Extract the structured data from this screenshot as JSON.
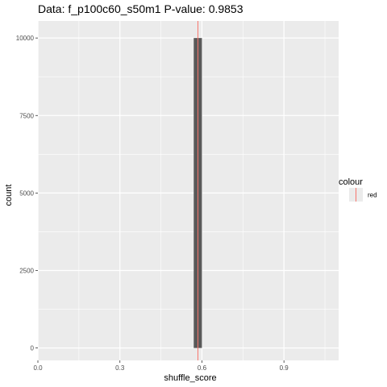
{
  "chart_data": {
    "type": "bar",
    "title": "Data: f_p100c60_s50m1      P-value: 0.9853",
    "xlabel": "shuffle_score",
    "ylabel": "count",
    "xlim": [
      0,
      1.1
    ],
    "ylim": [
      -400,
      10550
    ],
    "x_ticks": [
      0,
      0.3,
      0.6,
      0.9
    ],
    "x_tick_labels": [
      "0.0",
      "0.3",
      "0.6",
      "0.9"
    ],
    "y_ticks": [
      0,
      2500,
      5000,
      7500,
      10000
    ],
    "y_tick_labels": [
      "0",
      "2500",
      "5000",
      "7500",
      "10000"
    ],
    "bars": [
      {
        "x0": 0.57,
        "x1": 0.585,
        "count": 10000
      },
      {
        "x0": 0.585,
        "x1": 0.6,
        "count": 10000
      }
    ],
    "vline": {
      "x": 0.5853,
      "color": "#f8766d"
    },
    "legend": {
      "title": "colour",
      "entries": [
        {
          "label": "red",
          "color": "#f8766d"
        }
      ],
      "position": "right"
    },
    "colors": {
      "panel": "#ebebeb",
      "grid_major": "#ffffff",
      "bar_fill": "#595959"
    },
    "grid": true
  }
}
